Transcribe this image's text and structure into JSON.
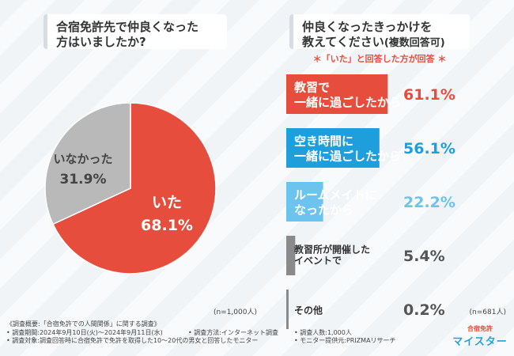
{
  "questions": {
    "q1": "合宿免許先で仲良くなった\n方はいましたか?",
    "q2_line1": "仲良くなったきっかけを",
    "q2_line2": "教えてください",
    "q2_suffix": "(複数回答可)"
  },
  "note": "＊「いた」と回答した方が回答 ＊",
  "colors": {
    "red": "#e64d3d",
    "blue": "#1e9fdc",
    "lightblue": "#6cc3ee",
    "gray": "#b9b9b9",
    "darkgray": "#8a8a8a"
  },
  "chart_data": [
    {
      "type": "pie",
      "title": "合宿免許先で仲良くなった方はいましたか?",
      "slices": [
        {
          "label": "いた",
          "value": 68.1,
          "display": "68.1%"
        },
        {
          "label": "いなかった",
          "value": 31.9,
          "display": "31.9%"
        }
      ],
      "n": "(n=1,000人)"
    },
    {
      "type": "bar",
      "title": "仲良くなったきっかけを教えてください(複数回答可)",
      "categories": [
        "教習で\n一緒に過ごしたから",
        "空き時間に\n一緒に過ごしたから",
        "ルームメイトに\nなったから",
        "教習所が開催した\nイベントで",
        "その他"
      ],
      "values": [
        61.1,
        56.1,
        22.2,
        5.4,
        0.2
      ],
      "display": [
        "61.1%",
        "56.1%",
        "22.2%",
        "5.4%",
        "0.2%"
      ],
      "xlim": [
        0,
        100
      ],
      "n": "(n=681人)"
    }
  ],
  "footer": {
    "summary": "《調査概要:「合宿免許での人間関係」に関する調査》",
    "period": "• 調査期間:2024年9月10日(火)〜2024年9月11日(水)",
    "target": "• 調査対象:調査回答時に合宿免許で免許を取得した10〜20代の男女と回答したモニター",
    "method": "• 調査方法:インターネット調査",
    "count": "• 調査人数:1,000人",
    "provider": "• モニター提供元:PRIZMAリサーチ"
  },
  "logo": {
    "top": "合宿免許",
    "bottom": "マイスター"
  }
}
